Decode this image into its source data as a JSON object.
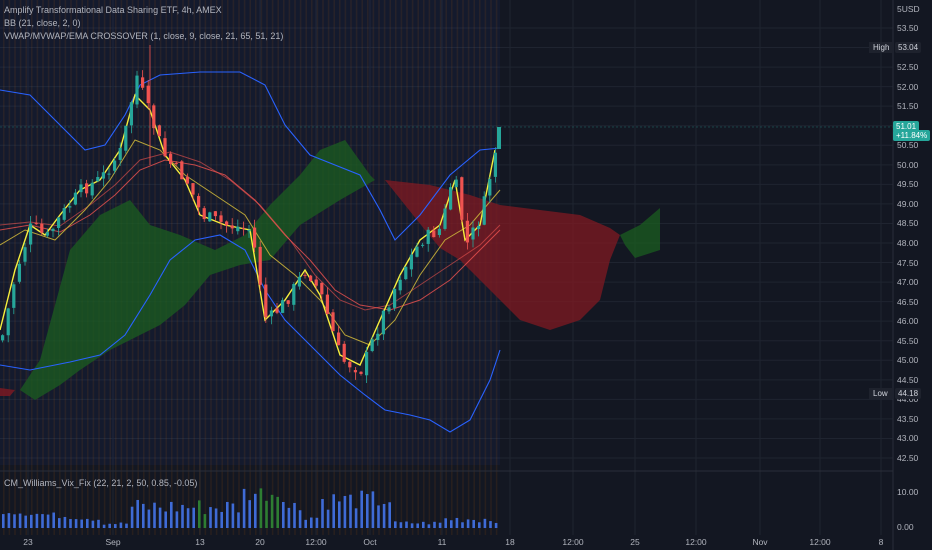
{
  "legend": {
    "title": "Amplify Transformational Data Sharing ETF, 4h, AMEX",
    "bb": "BB (21, close, 2, 0)",
    "vwap": "VWAP/MVWAP/EMA CROSSOVER (1, close, 9, close, 21, 65, 51, 21)",
    "vix": "CM_Williams_Vix_Fix (22, 21, 2, 50, 0.85, -0.05)"
  },
  "currency": "USD",
  "price_axis": [
    "53.50",
    "53.00",
    "52.50",
    "52.00",
    "51.50",
    "51.00",
    "50.50",
    "50.00",
    "49.50",
    "49.00",
    "48.50",
    "48.00",
    "47.50",
    "47.00",
    "46.50",
    "46.00",
    "45.50",
    "45.00",
    "44.50",
    "44.00",
    "43.50",
    "43.00",
    "42.50"
  ],
  "vix_axis": [
    "10.00",
    "0.00"
  ],
  "time_axis": [
    "23",
    "Sep",
    "13",
    "20",
    "12:00",
    "Oct",
    "11",
    "18",
    "12:00",
    "25",
    "12:00",
    "Nov",
    "12:00",
    "8"
  ],
  "markers": {
    "high_label": "High",
    "high_value": "53.04",
    "low_label": "Low",
    "low_value": "44.18",
    "last_price": "51.01",
    "last_change": "+11.84%"
  },
  "colors": {
    "background": "#131722",
    "up": "#26a69a",
    "down": "#ef5350",
    "bb": "#2962ff",
    "cloud_green": "#1b5e20",
    "cloud_red": "#801922",
    "vix_bar": "#3f6bd6",
    "vix_hi": "#2e7d32",
    "last_price": "#26a69a"
  }
}
